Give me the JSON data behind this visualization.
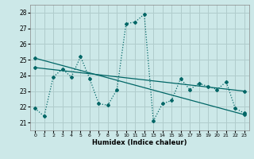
{
  "xlabel": "Humidex (Indice chaleur)",
  "xlim": [
    -0.5,
    23.5
  ],
  "ylim": [
    20.5,
    28.5
  ],
  "yticks": [
    21,
    22,
    23,
    24,
    25,
    26,
    27,
    28
  ],
  "xticks": [
    0,
    1,
    2,
    3,
    4,
    5,
    6,
    7,
    8,
    9,
    10,
    11,
    12,
    13,
    14,
    15,
    16,
    17,
    18,
    19,
    20,
    21,
    22,
    23
  ],
  "bg_color": "#cce8e8",
  "grid_color": "#b0cccc",
  "line_color": "#006666",
  "series1_x": [
    0,
    1,
    2,
    3,
    4,
    5,
    6,
    7,
    8,
    9,
    10,
    11,
    12,
    13,
    14,
    15,
    16,
    17,
    18,
    19,
    20,
    21,
    22,
    23
  ],
  "series1_y": [
    21.9,
    21.4,
    23.9,
    24.4,
    23.9,
    25.2,
    23.8,
    22.2,
    22.1,
    23.1,
    27.3,
    27.4,
    27.9,
    21.1,
    22.2,
    22.4,
    23.8,
    23.1,
    23.5,
    23.3,
    23.1,
    23.6,
    21.9,
    21.6
  ],
  "series2_x": [
    0,
    23
  ],
  "series2_y": [
    25.1,
    21.5
  ],
  "series3_x": [
    0,
    23
  ],
  "series3_y": [
    24.5,
    23.0
  ]
}
